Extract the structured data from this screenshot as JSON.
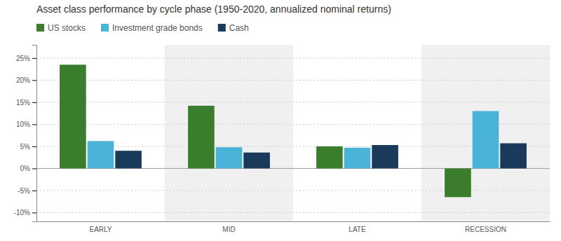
{
  "chart_data": {
    "type": "bar",
    "title": "Asset class performance by cycle phase (1950-2020, annualized nominal returns)",
    "categories": [
      "EARLY",
      "MID",
      "LATE",
      "RECESSION"
    ],
    "series": [
      {
        "name": "US stocks",
        "color": "#3a7d2c",
        "values": [
          23.5,
          14.2,
          5.0,
          -6.5
        ]
      },
      {
        "name": "Investment grade bonds",
        "color": "#4ab3d8",
        "values": [
          6.2,
          4.8,
          4.7,
          13.0
        ]
      },
      {
        "name": "Cash",
        "color": "#1a3a5c",
        "values": [
          4.0,
          3.6,
          5.3,
          5.7
        ]
      }
    ],
    "ylim": [
      -12,
      28
    ],
    "yticks": [
      {
        "value": -10,
        "label": "-10%"
      },
      {
        "value": -5,
        "label": "-5%"
      },
      {
        "value": 0,
        "label": "0%"
      },
      {
        "value": 5,
        "label": "5%"
      },
      {
        "value": 10,
        "label": "10%"
      },
      {
        "value": 15,
        "label": "15%"
      },
      {
        "value": 20,
        "label": "20%"
      },
      {
        "value": 25,
        "label": "25%"
      }
    ],
    "grid": true,
    "legend": "top-left"
  }
}
